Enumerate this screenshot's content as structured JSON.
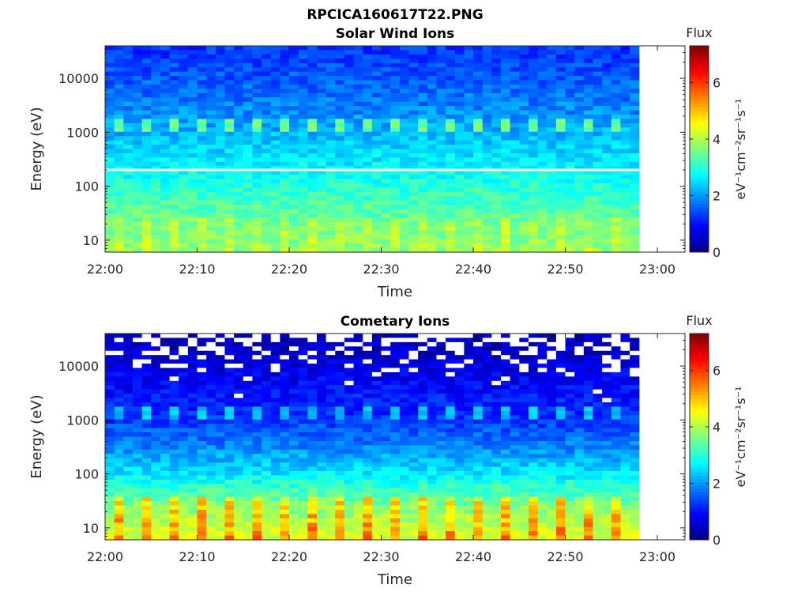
{
  "figure": {
    "title": "RPCICA160617T22.PNG"
  },
  "chart_data": [
    {
      "type": "heatmap",
      "title": "Solar Wind Ions",
      "xlabel": "Time",
      "ylabel": "Energy (eV)",
      "x_ticks": [
        "22:00",
        "22:10",
        "22:20",
        "22:30",
        "22:40",
        "22:50",
        "23:00"
      ],
      "x_range": [
        "22:00",
        "23:03"
      ],
      "data_end": "22:58",
      "y_scale": "log",
      "y_ticks": [
        "10",
        "100",
        "1000",
        "10000"
      ],
      "y_range": [
        6,
        40000
      ],
      "colorbar": {
        "label": "Flux",
        "unit": "eV⁻¹cm⁻²sr⁻¹s⁻¹",
        "ticks": [
          "0",
          "2",
          "4",
          "6"
        ],
        "range": [
          0,
          7.3
        ],
        "colormap": "jet"
      },
      "features": [
        {
          "energy_eV": 1400,
          "value": 3.5,
          "description_value": "periodic flux peaks"
        },
        {
          "energy_eV": 200,
          "value": null
        }
      ],
      "background_profile": [
        {
          "energy_eV": 30000,
          "value": 1.3
        },
        {
          "energy_eV": 5000,
          "value": 1.7
        },
        {
          "energy_eV": 1000,
          "value": 2.2
        },
        {
          "energy_eV": 300,
          "value": 2.6
        },
        {
          "energy_eV": 100,
          "value": 3.0
        },
        {
          "energy_eV": 20,
          "value": 3.6
        },
        {
          "energy_eV": 7,
          "value": 3.8
        }
      ]
    },
    {
      "type": "heatmap",
      "title": "Cometary Ions",
      "xlabel": "Time",
      "ylabel": "Energy (eV)",
      "x_ticks": [
        "22:00",
        "22:10",
        "22:20",
        "22:30",
        "22:40",
        "22:50",
        "23:00"
      ],
      "x_range": [
        "22:00",
        "23:03"
      ],
      "data_end": "22:58",
      "y_scale": "log",
      "y_ticks": [
        "10",
        "100",
        "1000",
        "10000"
      ],
      "y_range": [
        6,
        40000
      ],
      "colorbar": {
        "label": "Flux",
        "unit": "eV⁻¹cm⁻²sr⁻¹s⁻¹",
        "ticks": [
          "0",
          "2",
          "4",
          "6"
        ],
        "range": [
          0,
          7.3
        ],
        "colormap": "jet"
      },
      "features": [
        {
          "energy_eV": 1400,
          "value": 2.3
        },
        {
          "energy_eV": 12,
          "value": 4.8
        }
      ],
      "background_profile": [
        {
          "energy_eV": 30000,
          "value": 0.4
        },
        {
          "energy_eV": 5000,
          "value": 0.9
        },
        {
          "energy_eV": 1000,
          "value": 1.3
        },
        {
          "energy_eV": 300,
          "value": 1.9
        },
        {
          "energy_eV": 100,
          "value": 2.6
        },
        {
          "energy_eV": 30,
          "value": 3.6
        },
        {
          "energy_eV": 8,
          "value": 4.3
        }
      ]
    }
  ]
}
